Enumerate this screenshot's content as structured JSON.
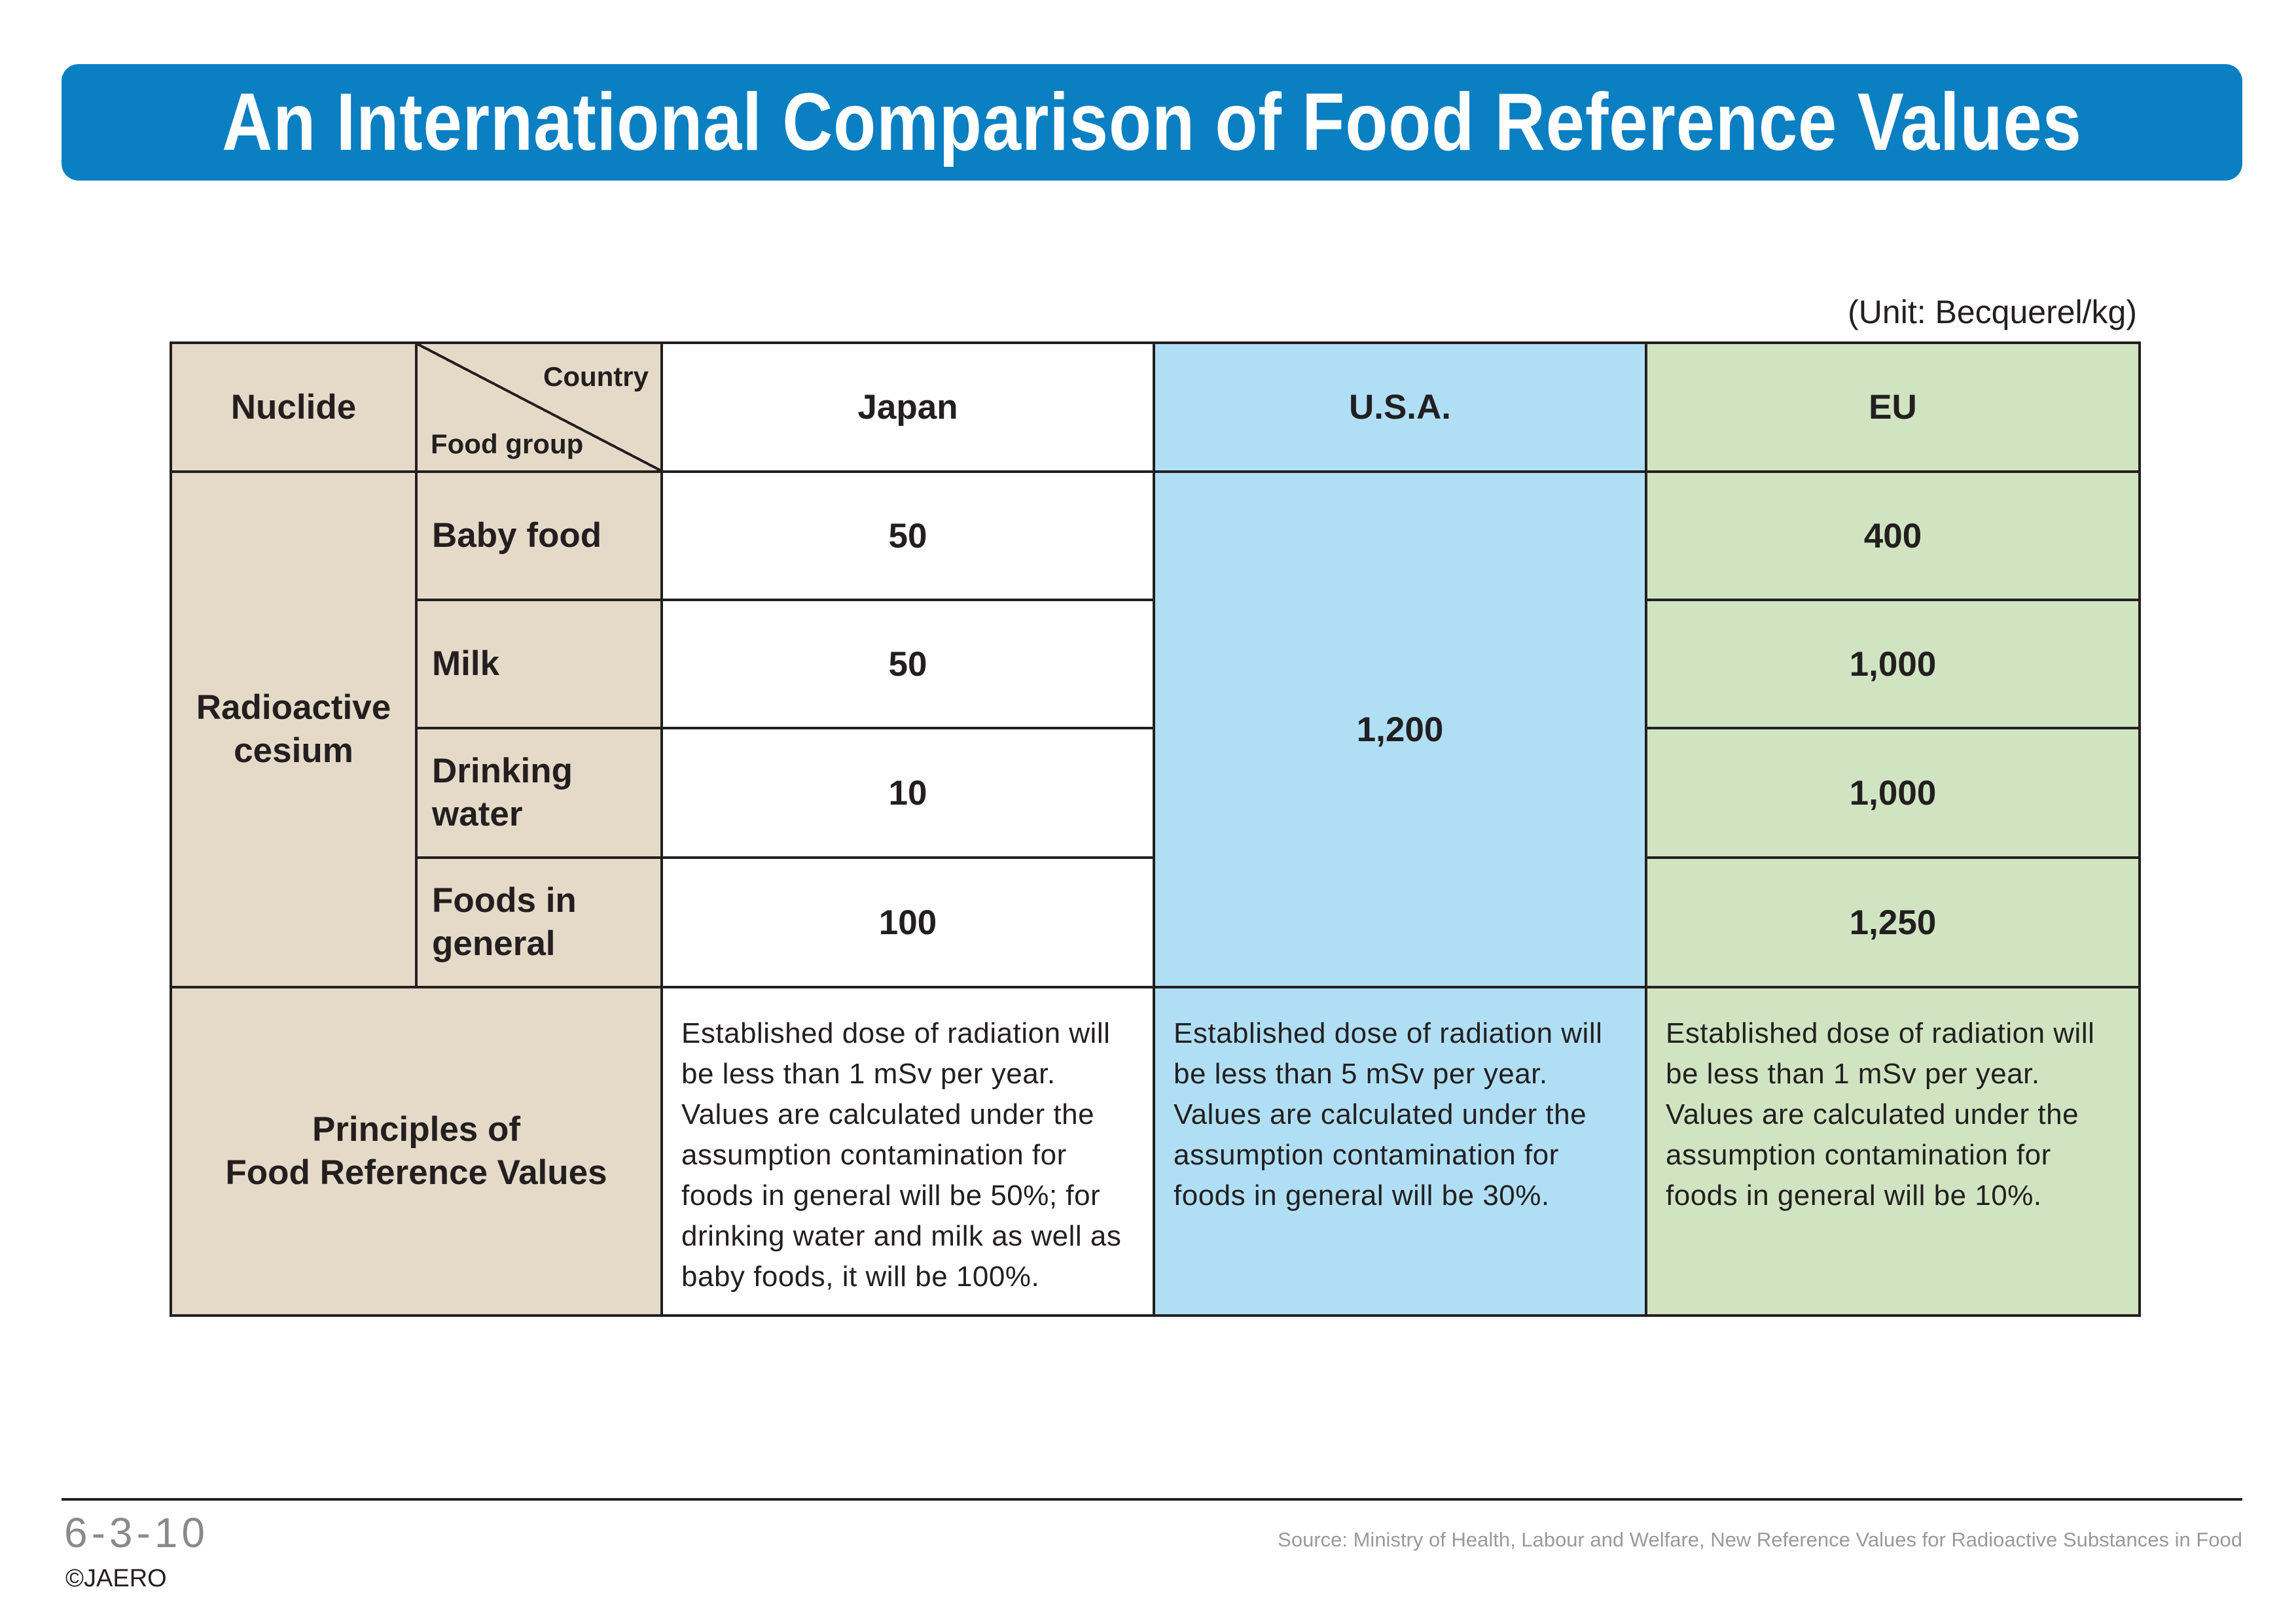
{
  "title": "An International Comparison of Food Reference Values",
  "unit": "(Unit: Becquerel/kg)",
  "table": {
    "header": {
      "nuclide": "Nuclide",
      "country": "Country",
      "food_group": "Food group",
      "japan": "Japan",
      "usa": "U.S.A.",
      "eu": "EU"
    },
    "nuclide_name": "Radioactive cesium",
    "rows": [
      {
        "food": "Baby food",
        "japan": "50",
        "eu": "400"
      },
      {
        "food": "Milk",
        "japan": "50",
        "eu": "1,000"
      },
      {
        "food": "Drinking water",
        "japan": "10",
        "eu": "1,000"
      },
      {
        "food": "Foods in general",
        "japan": "100",
        "eu": "1,250"
      }
    ],
    "usa_value": "1,200",
    "principles": {
      "label_line1": "Principles of",
      "label_line2": "Food Reference Values",
      "japan": "Established dose of radiation will be less than 1 mSv per year. Values are calculated under the assumption contamination for foods in general will be 50%; for drinking water and milk as well as baby foods, it will be 100%.",
      "usa": "Established dose of radiation will be less than 5 mSv per year. Values are calculated under the assumption contamination for foods in general will be 30%.",
      "eu": "Established dose of radiation will be less than 1 mSv per year. Values are calculated under the assumption contamination for foods in general will be 10%."
    }
  },
  "footer": {
    "page_number": "6-3-10",
    "copyright": "©JAERO",
    "source": "Source: Ministry of Health, Labour and Welfare, New Reference Values for Radioactive Substances in Food"
  },
  "colors": {
    "title_bar": "#0a7fc2",
    "beige": "#e5dac8",
    "usa_blue": "#b0dff5",
    "eu_green": "#d0e4c1"
  }
}
